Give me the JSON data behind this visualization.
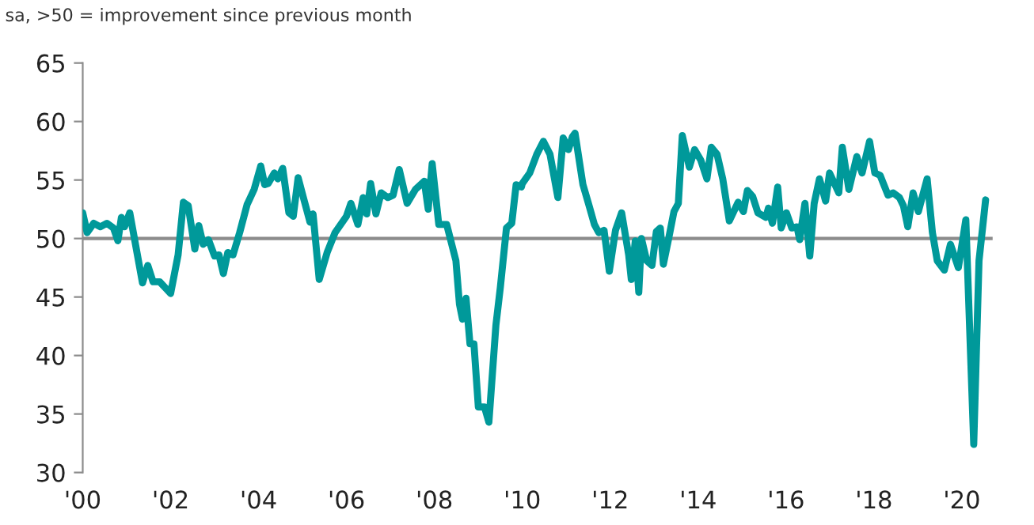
{
  "chart_data": {
    "type": "line",
    "subtitle": "sa, >50 = improvement since previous month",
    "series": [
      {
        "color": "#00999a",
        "x": [
          2000.0,
          2000.1,
          2000.25,
          2000.4,
          2000.55,
          2000.7,
          2000.8,
          2000.88,
          2000.95,
          2001.07,
          2001.36,
          2001.48,
          2001.6,
          2001.75,
          2001.9,
          2002.0,
          2002.17,
          2002.29,
          2002.4,
          2002.55,
          2002.64,
          2002.74,
          2002.86,
          2003.0,
          2003.1,
          2003.2,
          2003.3,
          2003.42,
          2003.57,
          2003.74,
          2003.9,
          2004.05,
          2004.14,
          2004.22,
          2004.36,
          2004.44,
          2004.55,
          2004.69,
          2004.79,
          2004.9,
          2005.02,
          2005.17,
          2005.24,
          2005.38,
          2005.56,
          2005.74,
          2006.0,
          2006.1,
          2006.26,
          2006.38,
          2006.46,
          2006.55,
          2006.67,
          2006.79,
          2006.94,
          2007.06,
          2007.2,
          2007.38,
          2007.57,
          2007.77,
          2007.86,
          2007.95,
          2008.1,
          2008.28,
          2008.49,
          2008.57,
          2008.64,
          2008.72,
          2008.81,
          2008.9,
          2009.0,
          2009.14,
          2009.24,
          2009.4,
          2009.5,
          2009.64,
          2009.76,
          2009.86,
          2009.98,
          2010.0,
          2010.17,
          2010.33,
          2010.48,
          2010.63,
          2010.81,
          2010.93,
          2011.05,
          2011.14,
          2011.2,
          2011.38,
          2011.52,
          2011.64,
          2011.74,
          2011.86,
          2011.98,
          2012.12,
          2012.26,
          2012.42,
          2012.48,
          2012.57,
          2012.65,
          2012.71,
          2012.83,
          2012.95,
          2013.05,
          2013.14,
          2013.21,
          2013.33,
          2013.45,
          2013.55,
          2013.64,
          2013.8,
          2013.92,
          2014.06,
          2014.2,
          2014.3,
          2014.43,
          2014.56,
          2014.71,
          2014.91,
          2015.03,
          2015.12,
          2015.24,
          2015.36,
          2015.54,
          2015.6,
          2015.69,
          2015.81,
          2015.89,
          2016.01,
          2016.13,
          2016.25,
          2016.31,
          2016.43,
          2016.54,
          2016.64,
          2016.76,
          2016.9,
          2016.99,
          2017.2,
          2017.28,
          2017.43,
          2017.61,
          2017.73,
          2017.9,
          2018.02,
          2018.14,
          2018.32,
          2018.44,
          2018.58,
          2018.67,
          2018.77,
          2018.89,
          2019.01,
          2019.21,
          2019.33,
          2019.44,
          2019.6,
          2019.74,
          2019.92,
          2020.09,
          2020.27,
          2020.39,
          2020.54
        ],
        "values": [
          52.2,
          50.5,
          51.3,
          51.0,
          51.3,
          50.9,
          49.8,
          51.8,
          51.0,
          52.2,
          46.2,
          47.7,
          46.3,
          46.3,
          45.7,
          45.3,
          48.6,
          53.1,
          52.8,
          49.1,
          51.1,
          49.5,
          49.9,
          48.5,
          48.6,
          47.0,
          48.8,
          48.6,
          50.5,
          52.9,
          54.2,
          56.2,
          54.6,
          54.7,
          55.6,
          55.1,
          56.0,
          52.2,
          51.9,
          55.2,
          53.5,
          51.4,
          52.1,
          46.5,
          48.8,
          50.5,
          51.9,
          53.0,
          51.2,
          53.5,
          52.1,
          54.7,
          52.1,
          53.9,
          53.5,
          53.7,
          55.9,
          53.0,
          54.2,
          54.9,
          52.5,
          56.4,
          51.2,
          51.2,
          48.1,
          44.4,
          43.1,
          44.9,
          41.0,
          41.0,
          35.6,
          35.6,
          34.3,
          42.6,
          45.8,
          50.9,
          51.3,
          54.6,
          54.4,
          54.7,
          55.6,
          57.2,
          58.3,
          57.2,
          53.5,
          58.6,
          57.6,
          58.7,
          59.0,
          54.6,
          52.8,
          51.2,
          50.5,
          50.7,
          47.2,
          50.7,
          52.2,
          48.6,
          46.5,
          49.8,
          45.4,
          50.0,
          48.1,
          47.7,
          50.6,
          50.9,
          47.8,
          50.0,
          52.3,
          53.0,
          58.8,
          56.1,
          57.6,
          56.7,
          55.1,
          57.8,
          57.2,
          55.1,
          51.5,
          53.1,
          52.3,
          54.1,
          53.6,
          52.2,
          51.8,
          52.6,
          51.3,
          54.4,
          50.9,
          52.2,
          50.9,
          51.0,
          49.9,
          53.0,
          48.5,
          53.0,
          55.1,
          53.2,
          55.6,
          53.9,
          57.8,
          54.2,
          57.0,
          55.6,
          58.3,
          55.6,
          55.4,
          53.7,
          53.9,
          53.5,
          52.8,
          51.0,
          53.9,
          52.3,
          55.1,
          50.5,
          48.1,
          47.3,
          49.5,
          47.5,
          51.6,
          32.4,
          48.1,
          53.3
        ]
      }
    ],
    "xlim": [
      2000,
      2020.7
    ],
    "ylim": [
      30,
      65
    ],
    "xticks": [
      {
        "value": 2000,
        "label": "'00"
      },
      {
        "value": 2002,
        "label": "'02"
      },
      {
        "value": 2004,
        "label": "'04"
      },
      {
        "value": 2006,
        "label": "'06"
      },
      {
        "value": 2008,
        "label": "'08"
      },
      {
        "value": 2010,
        "label": "'10"
      },
      {
        "value": 2012,
        "label": "'12"
      },
      {
        "value": 2014,
        "label": "'14"
      },
      {
        "value": 2016,
        "label": "'16"
      },
      {
        "value": 2018,
        "label": "'18"
      },
      {
        "value": 2020,
        "label": "'20"
      }
    ],
    "yticks": [
      30,
      35,
      40,
      45,
      50,
      55,
      60,
      65
    ],
    "ref_lines": [
      {
        "axis": "y",
        "value": 50,
        "color": "#8c8c8c"
      }
    ],
    "grid": false,
    "legend": false,
    "marker": "none",
    "line_style": "solid"
  }
}
